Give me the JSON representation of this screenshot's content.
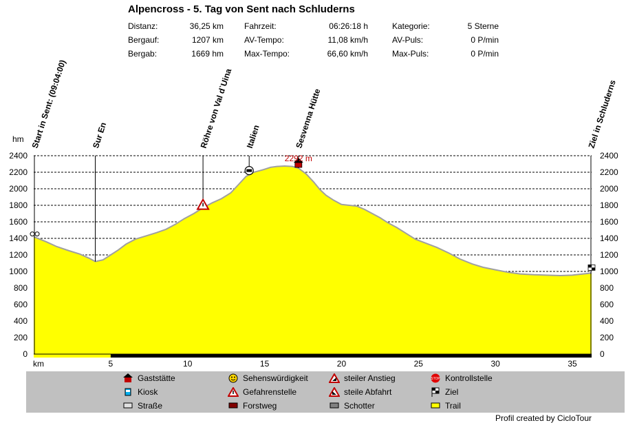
{
  "title": "Alpencross - 5. Tag von Sent nach Schluderns",
  "stats": [
    [
      {
        "label": "Distanz:",
        "value": "36,25 km"
      },
      {
        "label": "Fahrzeit:",
        "value": "06:26:18 h"
      },
      {
        "label": "Kategorie:",
        "value": "5 Sterne"
      }
    ],
    [
      {
        "label": "Bergauf:",
        "value": "1207 km"
      },
      {
        "label": "AV-Tempo:",
        "value": "11,08 km/h"
      },
      {
        "label": "AV-Puls:",
        "value": "0 P/min"
      }
    ],
    [
      {
        "label": "Bergab:",
        "value": "1669 hm"
      },
      {
        "label": "Max-Tempo:",
        "value": "66,60 km/h"
      },
      {
        "label": "Max-Puls:",
        "value": "0 P/min"
      }
    ]
  ],
  "chart_data": {
    "type": "area",
    "xlabel": "km",
    "ylabel": "hm",
    "xlim": [
      0,
      36.25
    ],
    "ylim": [
      0,
      2400
    ],
    "x_ticks": [
      5,
      10,
      15,
      20,
      25,
      30,
      35
    ],
    "y_ticks": [
      0,
      200,
      400,
      600,
      800,
      1000,
      1200,
      1400,
      1600,
      1800,
      2000,
      2200,
      2400
    ],
    "grid": true,
    "fill_color": "#ffff00",
    "line_color": "#a0a0a0",
    "profile": {
      "x": [
        0,
        0.8,
        1.5,
        2.3,
        3,
        3.6,
        4,
        4.5,
        5,
        5.5,
        6,
        6.6,
        7.3,
        8,
        8.6,
        9.2,
        9.8,
        10.4,
        11,
        11.6,
        12.2,
        12.8,
        13.3,
        13.8,
        14.3,
        14.9,
        15.4,
        15.8,
        16.3,
        16.8,
        17.2,
        17.7,
        18.2,
        18.6,
        19,
        19.5,
        20,
        20.5,
        21,
        21.5,
        22,
        22.5,
        23,
        23.6,
        24.2,
        24.8,
        25.5,
        26.2,
        27,
        27.7,
        28.5,
        29.2,
        30,
        30.8,
        31.6,
        32.5,
        33.3,
        34.2,
        35,
        35.7,
        36.25
      ],
      "y": [
        1420,
        1360,
        1300,
        1250,
        1210,
        1160,
        1120,
        1140,
        1200,
        1260,
        1330,
        1390,
        1430,
        1470,
        1510,
        1570,
        1640,
        1700,
        1770,
        1830,
        1880,
        1950,
        2050,
        2150,
        2200,
        2230,
        2260,
        2270,
        2275,
        2270,
        2250,
        2180,
        2080,
        1990,
        1920,
        1860,
        1810,
        1800,
        1790,
        1750,
        1700,
        1650,
        1590,
        1530,
        1460,
        1390,
        1340,
        1290,
        1220,
        1150,
        1090,
        1050,
        1020,
        990,
        970,
        960,
        955,
        950,
        955,
        970,
        980
      ]
    },
    "markers": [
      {
        "km": 0,
        "label": "Start in Sent: (09:04:00)",
        "type": "start"
      },
      {
        "km": 4.0,
        "label": "Sur En",
        "type": "line"
      },
      {
        "km": 11.0,
        "label": "Röhre von Val d`Uina",
        "type": "danger"
      },
      {
        "km": 14.0,
        "label": "Italien",
        "type": "border"
      },
      {
        "km": 17.2,
        "label": "Sesvenna Hütte",
        "type": "hut",
        "note": "2292 m"
      },
      {
        "km": 36.25,
        "label": "Ziel in Schluderns",
        "type": "finish"
      }
    ],
    "surface_bar": [
      {
        "from": 0,
        "to": 5,
        "surface": "Trail"
      },
      {
        "from": 5,
        "to": 36.25,
        "surface": "Forstweg"
      }
    ]
  },
  "legend": [
    {
      "label": "Gaststätte",
      "icon": "house-icon"
    },
    {
      "label": "Sehenswürdigkeit",
      "icon": "smiley-icon"
    },
    {
      "label": "steiler Anstieg",
      "icon": "steep-up-icon"
    },
    {
      "label": "Kontrollstelle",
      "icon": "stop-icon"
    },
    {
      "label": "Kiosk",
      "icon": "kiosk-icon"
    },
    {
      "label": "Gefahrenstelle",
      "icon": "warning-icon"
    },
    {
      "label": "steile Abfahrt",
      "icon": "steep-down-icon"
    },
    {
      "label": "Ziel",
      "icon": "checkered-flag-icon"
    },
    {
      "label": "Straße",
      "icon": "road-swatch",
      "color": "#e0e0e0"
    },
    {
      "label": "Forstweg",
      "icon": "forest-road-swatch",
      "color": "#800000"
    },
    {
      "label": "Schotter",
      "icon": "gravel-swatch",
      "color": "#808080"
    },
    {
      "label": "Trail",
      "icon": "trail-swatch",
      "color": "#ffff00"
    }
  ],
  "credit": "Profil created by CicloTour"
}
